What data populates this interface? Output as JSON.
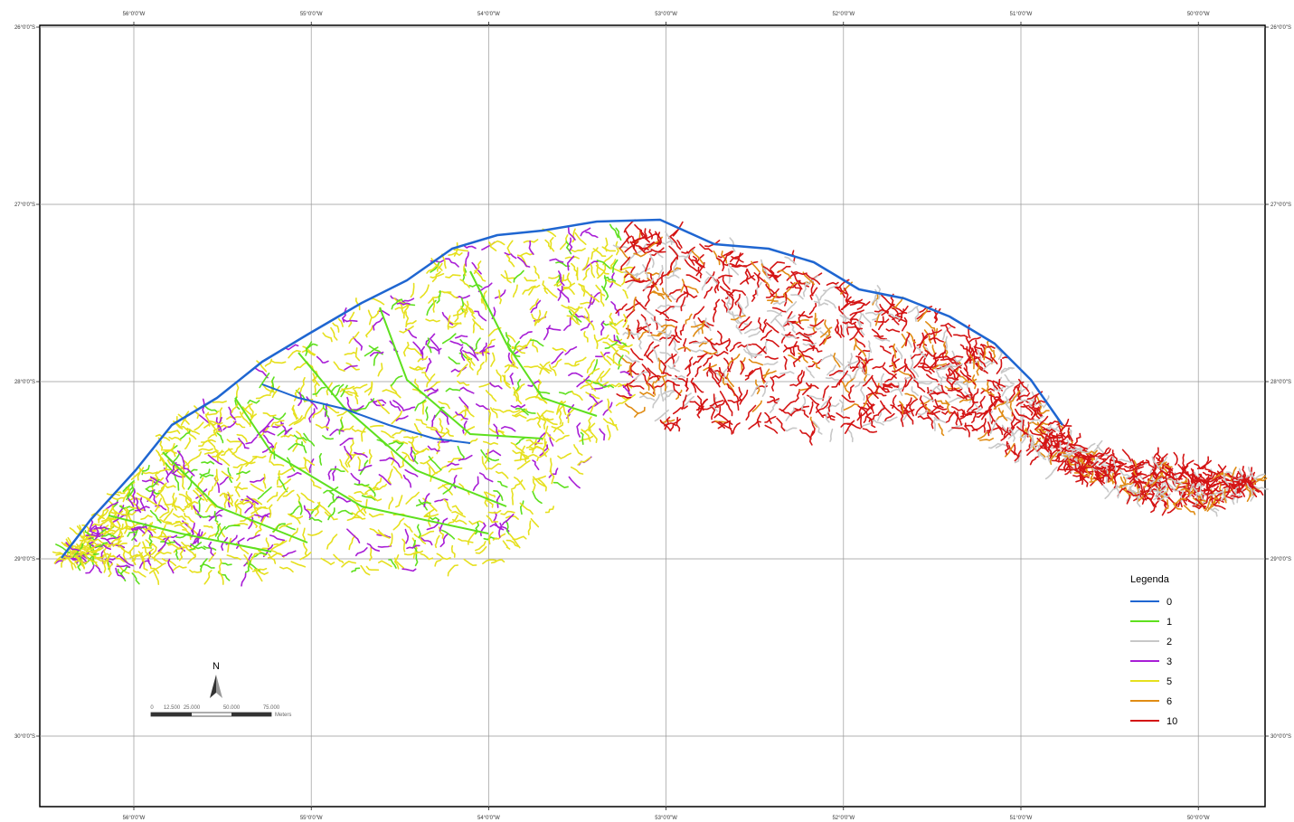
{
  "graticule": {
    "longitudes": [
      "56°0'0\"W",
      "55°0'0\"W",
      "54°0'0\"W",
      "53°0'0\"W",
      "52°0'0\"W",
      "51°0'0\"W",
      "50°0'0\"W"
    ],
    "latitudes": [
      "26°0'0\"S",
      "27°0'0\"S",
      "28°0'0\"S",
      "29°0'0\"S",
      "30°0'0\"S"
    ]
  },
  "legend": {
    "title": "Legenda",
    "items": [
      {
        "label": "0",
        "color": "#1f66d1"
      },
      {
        "label": "1",
        "color": "#5ee01e"
      },
      {
        "label": "2",
        "color": "#c8c8c8"
      },
      {
        "label": "3",
        "color": "#a81ed6"
      },
      {
        "label": "5",
        "color": "#e6e01e"
      },
      {
        "label": "6",
        "color": "#e08c14"
      },
      {
        "label": "10",
        "color": "#d41414"
      }
    ]
  },
  "scale_bar": {
    "labels": [
      "0",
      "12.500",
      "25.000",
      "50.000",
      "75.000"
    ],
    "unit": "Meters"
  },
  "north_arrow": "N"
}
